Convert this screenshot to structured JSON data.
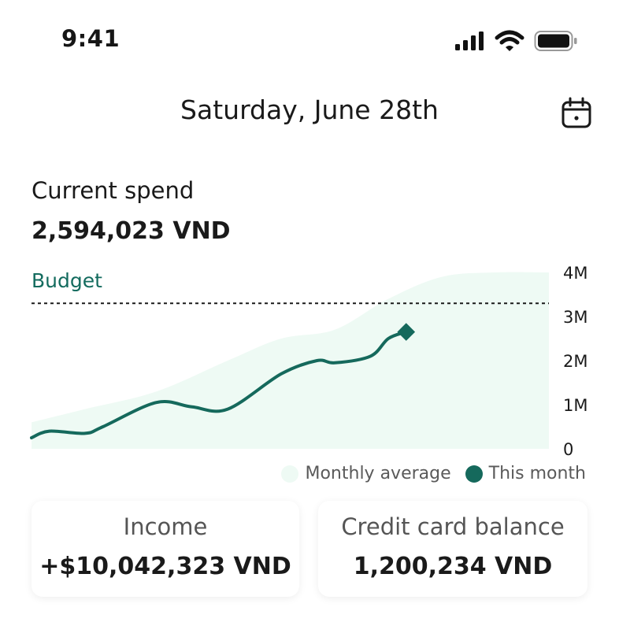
{
  "status_bar": {
    "time": "9:41"
  },
  "header": {
    "date": "Saturday, June 28th",
    "calendar_icon": "calendar-icon"
  },
  "summary": {
    "label": "Current spend",
    "value": "2,594,023 VND"
  },
  "budget": {
    "label": "Budget",
    "value": 3300000
  },
  "chart_data": {
    "type": "area",
    "y_ticks": [
      "4M",
      "3M",
      "2M",
      "1M",
      "0"
    ],
    "ylim": [
      0,
      4000000
    ],
    "x_unit": "day of month",
    "xlim": [
      1,
      30
    ],
    "budget_line": 3300000,
    "series": [
      {
        "name": "Monthly average",
        "color": "#eefaf4",
        "x": [
          1,
          4,
          8,
          12,
          15,
          18,
          21,
          24,
          27,
          30
        ],
        "y": [
          600000,
          900000,
          1300000,
          2000000,
          2500000,
          2700000,
          3400000,
          3900000,
          4000000,
          4100000
        ]
      },
      {
        "name": "This month",
        "color": "#15695c",
        "x": [
          1,
          2,
          4,
          5,
          8,
          10,
          12,
          15,
          17,
          18,
          20,
          21,
          22
        ],
        "y": [
          250000,
          400000,
          350000,
          500000,
          1050000,
          950000,
          900000,
          1700000,
          2000000,
          1950000,
          2100000,
          2500000,
          2650000
        ]
      }
    ]
  },
  "legend": {
    "average": "Monthly average",
    "month": "This month"
  },
  "cards": {
    "income": {
      "label": "Income",
      "value": "+$10,042,323 VND"
    },
    "credit": {
      "label": "Credit card balance",
      "value": "1,200,234 VND"
    }
  }
}
